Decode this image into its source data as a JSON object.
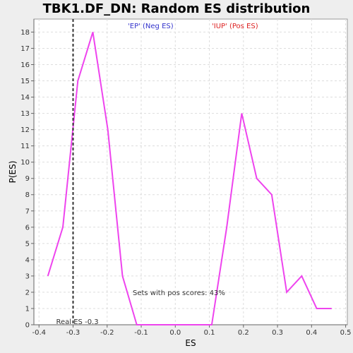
{
  "chart_data": {
    "type": "line",
    "title": "TBK1.DF_DN: Random ES distribution",
    "xlabel": "ES",
    "ylabel": "P(ES)",
    "xlim": [
      -0.415,
      0.505
    ],
    "ylim": [
      0,
      18.8
    ],
    "xticks": [
      -0.4,
      -0.3,
      -0.2,
      -0.1,
      0.0,
      0.1,
      0.2,
      0.3,
      0.4,
      0.5
    ],
    "xtick_labels": [
      "-0.4",
      "-0.3",
      "-0.2",
      "-0.1",
      "0.0",
      "0.1",
      "0.2",
      "0.3",
      "0.4",
      "0.5"
    ],
    "yticks": [
      0,
      1,
      2,
      3,
      4,
      5,
      6,
      7,
      8,
      9,
      10,
      11,
      12,
      13,
      14,
      15,
      16,
      17,
      18
    ],
    "grid": true,
    "legend": {
      "neg": {
        "label": "'EP' (Neg ES)",
        "color": "#3333cc"
      },
      "pos": {
        "label": "'IUP' (Pos ES)",
        "color": "#dd2222"
      }
    },
    "series": [
      {
        "color": "#ee44ee",
        "x": [
          -0.374,
          -0.33,
          -0.286,
          -0.242,
          -0.198,
          -0.155,
          -0.113,
          -0.069,
          -0.025,
          0.019,
          0.063,
          0.107,
          0.151,
          0.195,
          0.239,
          0.283,
          0.327,
          0.371,
          0.415,
          0.459
        ],
        "y": [
          3,
          6,
          15,
          18,
          12,
          3,
          0,
          0,
          0,
          0,
          0,
          0,
          6,
          13,
          9,
          8,
          2,
          3,
          1,
          1
        ]
      }
    ],
    "real_es": {
      "value": -0.3,
      "label": "Real ES -0.3"
    },
    "annotation": "Sets with pos scores: 43%"
  }
}
